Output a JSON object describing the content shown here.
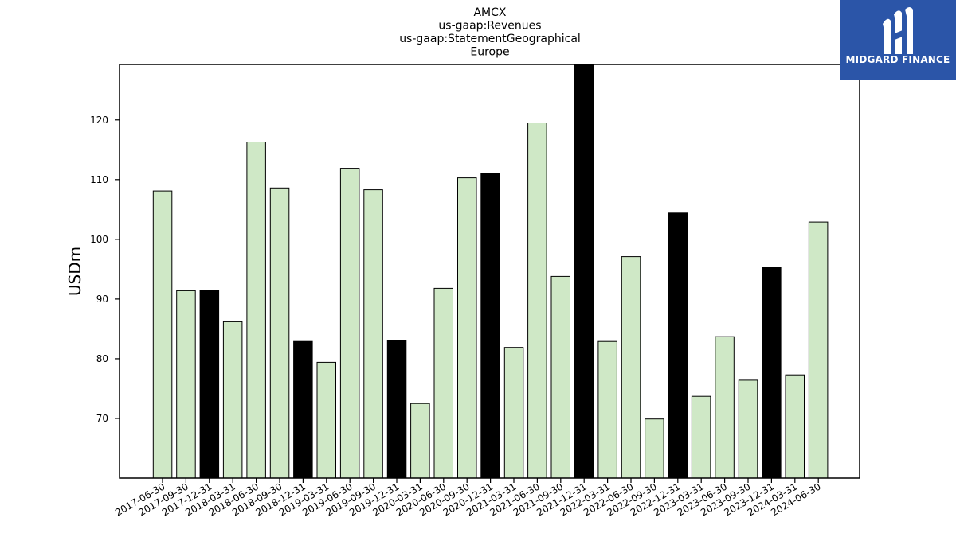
{
  "chart_data": {
    "type": "bar",
    "title_lines": [
      "AMCX",
      "us-gaap:Revenues",
      "us-gaap:StatementGeographical",
      "Europe"
    ],
    "ylabel": "USDm",
    "ylim": [
      60,
      129.3
    ],
    "yticks": [
      70,
      80,
      90,
      100,
      110,
      120
    ],
    "categories": [
      "2017-06-30",
      "2017-09-30",
      "2017-12-31",
      "2018-03-31",
      "2018-06-30",
      "2018-09-30",
      "2018-12-31",
      "2019-03-31",
      "2019-06-30",
      "2019-09-30",
      "2019-12-31",
      "2020-03-31",
      "2020-06-30",
      "2020-09-30",
      "2020-12-31",
      "2021-03-31",
      "2021-06-30",
      "2021-09-30",
      "2021-12-31",
      "2022-03-31",
      "2022-06-30",
      "2022-09-30",
      "2022-12-31",
      "2023-03-31",
      "2023-06-30",
      "2023-09-30",
      "2023-12-31",
      "2024-03-31",
      "2024-06-30"
    ],
    "values": [
      108.1,
      91.4,
      91.5,
      86.2,
      116.3,
      108.6,
      82.9,
      79.4,
      111.9,
      108.3,
      83.0,
      72.5,
      91.8,
      110.3,
      111.0,
      81.9,
      119.5,
      93.8,
      129.3,
      82.9,
      97.1,
      69.9,
      104.4,
      73.7,
      83.7,
      76.4,
      95.3,
      77.3,
      102.9
    ],
    "bar_colors": {
      "default": "#cfe8c6",
      "year_end": "#000000"
    },
    "highlight": [
      "2017-12-31",
      "2018-12-31",
      "2019-12-31",
      "2020-12-31",
      "2021-12-31",
      "2022-12-31",
      "2023-12-31"
    ],
    "grid": false,
    "legend": "none"
  },
  "logo": {
    "text": "MIDGARD FINANCE",
    "background": "#2b55a8",
    "icon": "midgard-logo-icon"
  }
}
